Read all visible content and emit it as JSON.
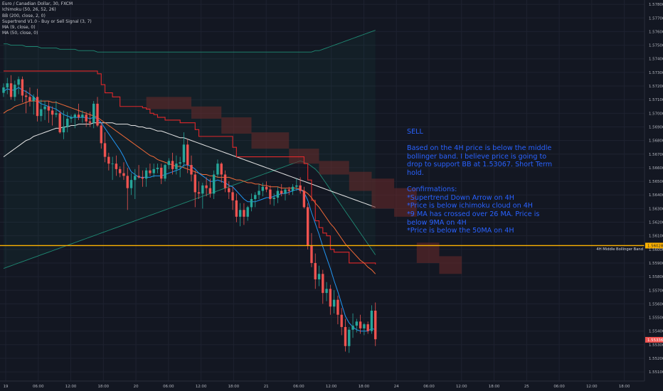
{
  "legend": {
    "symbol": "Euro / Canadian Dollar, 30, FXCM",
    "indicators": [
      "Ichimoku (50, 26, 52, 26)",
      "BB (200, close, 2, 0)",
      "Supertrend V1.0 - Buy or Sell Signal (3, 7)",
      "MA (9, close, 0)",
      "MA (50, close, 0)"
    ]
  },
  "note": {
    "heading": "SELL",
    "body": "Based on the 4H price is below the middle bollinger band. I believe price is going to drop to support BB at 1.53067. Short Term hold.",
    "confirm_title": "Confirmations:",
    "confirmations": [
      "*Supertrend Down Arrow on 4H",
      "*Price is below ichimoku cloud on 4H",
      "*9 MA has crossed over 26 MA. Price is below 9MA on 4H",
      "*Price is below the 50MA on 4H"
    ]
  },
  "colors": {
    "background": "#131722",
    "grid": "#1e2230",
    "candle_up": "#26a69a",
    "candle_down": "#ef5350",
    "supertrend": "#e0282b",
    "cloud": "#6b2a2a",
    "ma9": "#2196f3",
    "ma50": "#f06a38",
    "bb_basis": "#e6e6e6",
    "bb_band": "#1f8a74",
    "hline": "#ffb300",
    "note_text": "#2962ff",
    "price_badge": "#ef5350"
  },
  "chart_data": {
    "type": "candlestick",
    "y_ticks": [
      "1.57800",
      "1.57700",
      "1.57600",
      "1.57500",
      "1.57400",
      "1.57300",
      "1.57200",
      "1.57100",
      "1.57000",
      "1.56900",
      "1.56800",
      "1.56700",
      "1.56600",
      "1.56500",
      "1.56400",
      "1.56300",
      "1.56200",
      "1.56100",
      "1.56000",
      "1.55900",
      "1.55800",
      "1.55700",
      "1.55600",
      "1.55500",
      "1.55400",
      "1.55300",
      "1.55200",
      "1.55100"
    ],
    "ylim": [
      1.55033,
      1.57832
    ],
    "x_ticks": [
      "19",
      "06:00",
      "12:00",
      "18:00",
      "20",
      "06:00",
      "12:00",
      "18:00",
      "21",
      "06:00",
      "12:00",
      "18:00",
      "24",
      "06:00",
      "12:00",
      "18:00",
      "25",
      "06:00",
      "12:00",
      "18:00"
    ],
    "horizontal_line": {
      "value": 1.56028,
      "label": "4H Middle Bollinger Band",
      "badge": "1.56028"
    },
    "current_price": {
      "value": 1.55336,
      "badge": "1.55336"
    },
    "candles": [
      [
        1.5715,
        1.5722,
        1.5712,
        1.5719
      ],
      [
        1.5719,
        1.5726,
        1.5714,
        1.5722
      ],
      [
        1.5722,
        1.5728,
        1.571,
        1.5712
      ],
      [
        1.5712,
        1.5724,
        1.5709,
        1.5721
      ],
      [
        1.5721,
        1.5727,
        1.5714,
        1.5725
      ],
      [
        1.5725,
        1.5727,
        1.5708,
        1.5713
      ],
      [
        1.5713,
        1.5717,
        1.57,
        1.5712
      ],
      [
        1.5712,
        1.5719,
        1.5705,
        1.5709
      ],
      [
        1.5709,
        1.5714,
        1.5699,
        1.5712
      ],
      [
        1.5712,
        1.5718,
        1.5694,
        1.5698
      ],
      [
        1.5698,
        1.571,
        1.5694,
        1.5703
      ],
      [
        1.5703,
        1.5709,
        1.5695,
        1.5705
      ],
      [
        1.5705,
        1.5709,
        1.5693,
        1.5702
      ],
      [
        1.5702,
        1.5705,
        1.5691,
        1.5699
      ],
      [
        1.5699,
        1.5709,
        1.5697,
        1.57
      ],
      [
        1.57,
        1.5702,
        1.5685,
        1.5686
      ],
      [
        1.5686,
        1.5702,
        1.5681,
        1.569
      ],
      [
        1.569,
        1.5701,
        1.5686,
        1.5696
      ],
      [
        1.5696,
        1.5699,
        1.5693,
        1.5697
      ],
      [
        1.5697,
        1.57,
        1.5689,
        1.5699
      ],
      [
        1.5699,
        1.5707,
        1.5695,
        1.5697
      ],
      [
        1.5697,
        1.5702,
        1.5693,
        1.5699
      ],
      [
        1.5699,
        1.5701,
        1.569,
        1.5694
      ],
      [
        1.5694,
        1.5701,
        1.569,
        1.5693
      ],
      [
        1.5693,
        1.5709,
        1.5689,
        1.5707
      ],
      [
        1.5707,
        1.5712,
        1.569,
        1.5691
      ],
      [
        1.5691,
        1.5693,
        1.5674,
        1.5678
      ],
      [
        1.5678,
        1.5686,
        1.5664,
        1.5668
      ],
      [
        1.5668,
        1.5671,
        1.5658,
        1.5663
      ],
      [
        1.5663,
        1.5668,
        1.5651,
        1.5663
      ],
      [
        1.5663,
        1.5669,
        1.5654,
        1.5659
      ],
      [
        1.5659,
        1.5661,
        1.5653,
        1.5656
      ],
      [
        1.5656,
        1.5664,
        1.5651,
        1.5654
      ],
      [
        1.5654,
        1.566,
        1.5629,
        1.5645
      ],
      [
        1.5645,
        1.5656,
        1.564,
        1.5651
      ],
      [
        1.5651,
        1.5659,
        1.5637,
        1.5654
      ],
      [
        1.5654,
        1.5662,
        1.5652,
        1.5653
      ],
      [
        1.5653,
        1.5658,
        1.5646,
        1.5652
      ],
      [
        1.5652,
        1.566,
        1.5646,
        1.5658
      ],
      [
        1.5658,
        1.5663,
        1.5654,
        1.5656
      ],
      [
        1.5656,
        1.5663,
        1.5653,
        1.5659
      ],
      [
        1.5659,
        1.5663,
        1.5656,
        1.566
      ],
      [
        1.566,
        1.5663,
        1.5648,
        1.5652
      ],
      [
        1.5652,
        1.5663,
        1.565,
        1.5662
      ],
      [
        1.5662,
        1.5667,
        1.5659,
        1.5665
      ],
      [
        1.5665,
        1.5671,
        1.5655,
        1.5659
      ],
      [
        1.5659,
        1.5669,
        1.5655,
        1.5663
      ],
      [
        1.5663,
        1.5668,
        1.5653,
        1.5664
      ],
      [
        1.5664,
        1.5686,
        1.566,
        1.5677
      ],
      [
        1.5677,
        1.5681,
        1.5656,
        1.5662
      ],
      [
        1.5662,
        1.5669,
        1.565,
        1.5655
      ],
      [
        1.5655,
        1.5658,
        1.5631,
        1.5642
      ],
      [
        1.5642,
        1.565,
        1.5637,
        1.5641
      ],
      [
        1.5641,
        1.5649,
        1.563,
        1.5647
      ],
      [
        1.5647,
        1.5653,
        1.5639,
        1.5645
      ],
      [
        1.5645,
        1.5652,
        1.5638,
        1.5641
      ],
      [
        1.5641,
        1.5658,
        1.5637,
        1.5655
      ],
      [
        1.5655,
        1.5666,
        1.5653,
        1.5663
      ],
      [
        1.5663,
        1.5664,
        1.5649,
        1.5655
      ],
      [
        1.5655,
        1.5658,
        1.5642,
        1.5645
      ],
      [
        1.5645,
        1.565,
        1.5637,
        1.5642
      ],
      [
        1.5642,
        1.5646,
        1.5629,
        1.5636
      ],
      [
        1.5636,
        1.5641,
        1.562,
        1.5624
      ],
      [
        1.5624,
        1.5634,
        1.5617,
        1.5629
      ],
      [
        1.5629,
        1.5634,
        1.5618,
        1.5624
      ],
      [
        1.5624,
        1.5632,
        1.5621,
        1.5631
      ],
      [
        1.5631,
        1.5641,
        1.5628,
        1.5637
      ],
      [
        1.5637,
        1.5642,
        1.5631,
        1.564
      ],
      [
        1.564,
        1.5648,
        1.5637,
        1.5643
      ],
      [
        1.5643,
        1.5649,
        1.5639,
        1.5646
      ],
      [
        1.5646,
        1.565,
        1.5642,
        1.5644
      ],
      [
        1.5644,
        1.5647,
        1.5633,
        1.5637
      ],
      [
        1.5637,
        1.5641,
        1.5632,
        1.5638
      ],
      [
        1.5638,
        1.5646,
        1.5634,
        1.5643
      ],
      [
        1.5643,
        1.5648,
        1.5639,
        1.5641
      ],
      [
        1.5641,
        1.5645,
        1.5636,
        1.5644
      ],
      [
        1.5644,
        1.5646,
        1.564,
        1.5643
      ],
      [
        1.5643,
        1.5648,
        1.564,
        1.5646
      ],
      [
        1.5646,
        1.5652,
        1.5643,
        1.5647
      ],
      [
        1.5647,
        1.5653,
        1.5641,
        1.5643
      ],
      [
        1.5643,
        1.5646,
        1.563,
        1.5631
      ],
      [
        1.5631,
        1.5634,
        1.56,
        1.5603
      ],
      [
        1.5603,
        1.5612,
        1.5587,
        1.559
      ],
      [
        1.559,
        1.5597,
        1.5571,
        1.5578
      ],
      [
        1.5578,
        1.5588,
        1.5573,
        1.5582
      ],
      [
        1.5582,
        1.5585,
        1.556,
        1.5568
      ],
      [
        1.5568,
        1.5576,
        1.5562,
        1.5571
      ],
      [
        1.5571,
        1.5574,
        1.5552,
        1.5558
      ],
      [
        1.5558,
        1.557,
        1.5553,
        1.5563
      ],
      [
        1.5563,
        1.5566,
        1.5545,
        1.5552
      ],
      [
        1.5552,
        1.5557,
        1.5537,
        1.5543
      ],
      [
        1.5543,
        1.5549,
        1.5525,
        1.5529
      ],
      [
        1.5529,
        1.5543,
        1.5524,
        1.5541
      ],
      [
        1.5541,
        1.5553,
        1.5535,
        1.5544
      ],
      [
        1.5544,
        1.5549,
        1.5539,
        1.5547
      ],
      [
        1.5547,
        1.5552,
        1.5538,
        1.5542
      ],
      [
        1.5542,
        1.5546,
        1.5537,
        1.5545
      ],
      [
        1.5545,
        1.5547,
        1.5538,
        1.554
      ],
      [
        1.554,
        1.5559,
        1.5538,
        1.5555
      ],
      [
        1.5555,
        1.5561,
        1.5529,
        1.5534
      ]
    ],
    "ma9": [
      1.5716,
      1.5718,
      1.5717,
      1.5717,
      1.5719,
      1.5717,
      1.5716,
      1.5714,
      1.5712,
      1.5709,
      1.5707,
      1.5706,
      1.5705,
      1.5704,
      1.5703,
      1.5701,
      1.5699,
      1.5698,
      1.5697,
      1.5697,
      1.5697,
      1.5697,
      1.5697,
      1.5696,
      1.5697,
      1.5696,
      1.5693,
      1.5689,
      1.5685,
      1.5681,
      1.5677,
      1.5673,
      1.5668,
      1.5662,
      1.5657,
      1.5655,
      1.5653,
      1.5653,
      1.5653,
      1.5653,
      1.5654,
      1.5654,
      1.5654,
      1.5655,
      1.5656,
      1.5657,
      1.5658,
      1.5659,
      1.5662,
      1.5662,
      1.5661,
      1.5659,
      1.5656,
      1.5654,
      1.5652,
      1.565,
      1.565,
      1.5651,
      1.565,
      1.5649,
      1.5647,
      1.5646,
      1.5643,
      1.564,
      1.5637,
      1.5635,
      1.5635,
      1.5635,
      1.5636,
      1.5637,
      1.5638,
      1.5638,
      1.5639,
      1.564,
      1.5641,
      1.5641,
      1.5642,
      1.5643,
      1.5644,
      1.5644,
      1.5642,
      1.5636,
      1.5627,
      1.5619,
      1.5611,
      1.5602,
      1.5594,
      1.5586,
      1.5577,
      1.5569,
      1.556,
      1.5551,
      1.5546,
      1.5543,
      1.5541,
      1.554,
      1.554,
      1.554,
      1.5542,
      1.5541
    ],
    "ma50": [
      1.57,
      1.5702,
      1.5703,
      1.5705,
      1.5706,
      1.5707,
      1.5708,
      1.5709,
      1.5709,
      1.5709,
      1.5709,
      1.5709,
      1.5709,
      1.5708,
      1.5708,
      1.5707,
      1.5706,
      1.5705,
      1.5704,
      1.5703,
      1.5702,
      1.5701,
      1.57,
      1.5699,
      1.5698,
      1.5697,
      1.5695,
      1.5693,
      1.5691,
      1.5689,
      1.5687,
      1.5685,
      1.5683,
      1.5681,
      1.5679,
      1.5677,
      1.5675,
      1.5673,
      1.5671,
      1.5669,
      1.5668,
      1.5666,
      1.5665,
      1.5664,
      1.5663,
      1.5662,
      1.5661,
      1.5661,
      1.566,
      1.5659,
      1.5658,
      1.5657,
      1.5656,
      1.5655,
      1.5655,
      1.5654,
      1.5654,
      1.5653,
      1.5653,
      1.5653,
      1.5653,
      1.5652,
      1.5651,
      1.5651,
      1.565,
      1.5649,
      1.5649,
      1.5648,
      1.5648,
      1.5647,
      1.5647,
      1.5646,
      1.5646,
      1.5646,
      1.5645,
      1.5645,
      1.5645,
      1.5645,
      1.5645,
      1.5644,
      1.5643,
      1.5641,
      1.5638,
      1.5634,
      1.5631,
      1.5627,
      1.5623,
      1.5619,
      1.5616,
      1.5612,
      1.5608,
      1.5604,
      1.5601,
      1.5598,
      1.5595,
      1.5592,
      1.559,
      1.5587,
      1.5585,
      1.5582
    ],
    "bb_basis": [
      1.5668,
      1.567,
      1.5672,
      1.5674,
      1.5676,
      1.5678,
      1.568,
      1.5681,
      1.5683,
      1.5684,
      1.5685,
      1.5686,
      1.5687,
      1.5688,
      1.5689,
      1.5689,
      1.569,
      1.569,
      1.5691,
      1.5691,
      1.5692,
      1.5692,
      1.5692,
      1.5692,
      1.5693,
      1.5693,
      1.5693,
      1.5693,
      1.5693,
      1.5693,
      1.5692,
      1.5692,
      1.5692,
      1.5692,
      1.5691,
      1.5691,
      1.569,
      1.569,
      1.5689,
      1.5689,
      1.5688,
      1.5687,
      1.5687,
      1.5686,
      1.5685,
      1.5684,
      1.5683,
      1.5682,
      1.5682,
      1.5681,
      1.568,
      1.5679,
      1.5678,
      1.5677,
      1.5676,
      1.5675,
      1.5674,
      1.5673,
      1.5672,
      1.5671,
      1.567,
      1.5669,
      1.5668,
      1.5667,
      1.5666,
      1.5665,
      1.5664,
      1.5663,
      1.5662,
      1.5661,
      1.566,
      1.5659,
      1.5658,
      1.5657,
      1.5656,
      1.5655,
      1.5654,
      1.5653,
      1.5652,
      1.5651,
      1.565,
      1.5649,
      1.5648,
      1.5647,
      1.5646,
      1.5645,
      1.5644,
      1.5643,
      1.5642,
      1.5641,
      1.564,
      1.5639,
      1.5638,
      1.5637,
      1.5636,
      1.5635,
      1.5634,
      1.5633,
      1.5632,
      1.5631
    ],
    "bb_upper": [
      1.5751,
      1.5751,
      1.575,
      1.575,
      1.575,
      1.575,
      1.5749,
      1.5749,
      1.5749,
      1.5749,
      1.5748,
      1.5748,
      1.5748,
      1.5748,
      1.5748,
      1.5747,
      1.5747,
      1.5747,
      1.5747,
      1.5747,
      1.5746,
      1.5746,
      1.5746,
      1.5746,
      1.5746,
      1.5745,
      1.5745,
      1.5745,
      1.5745,
      1.5745,
      1.5745,
      1.5745,
      1.5745,
      1.5745,
      1.5745,
      1.5745,
      1.5745,
      1.5745,
      1.5745,
      1.5745,
      1.5745,
      1.5745,
      1.5745,
      1.5745,
      1.5745,
      1.5745,
      1.5745,
      1.5745,
      1.5745,
      1.5745,
      1.5745,
      1.5745,
      1.5745,
      1.5745,
      1.5745,
      1.5745,
      1.5745,
      1.5745,
      1.5745,
      1.5745,
      1.5745,
      1.5745,
      1.5745,
      1.5745,
      1.5745,
      1.5745,
      1.5745,
      1.5745,
      1.5745,
      1.5745,
      1.5745,
      1.5745,
      1.5745,
      1.5745,
      1.5745,
      1.5745,
      1.5745,
      1.5745,
      1.5745,
      1.5745,
      1.5745,
      1.5745,
      1.5745,
      1.5746,
      1.5746,
      1.5747,
      1.5748,
      1.5749,
      1.575,
      1.5751,
      1.5752,
      1.5753,
      1.5754,
      1.5755,
      1.5756,
      1.5757,
      1.5758,
      1.5759,
      1.576,
      1.5761
    ],
    "bb_lower": [
      1.5586,
      1.5587,
      1.5588,
      1.5589,
      1.559,
      1.5591,
      1.5592,
      1.5593,
      1.5594,
      1.5595,
      1.5596,
      1.5597,
      1.5598,
      1.5599,
      1.56,
      1.5601,
      1.5602,
      1.5603,
      1.5604,
      1.5605,
      1.5606,
      1.5607,
      1.5608,
      1.5609,
      1.561,
      1.5611,
      1.5612,
      1.5613,
      1.5614,
      1.5615,
      1.5616,
      1.5617,
      1.5618,
      1.5619,
      1.562,
      1.5621,
      1.5622,
      1.5623,
      1.5624,
      1.5625,
      1.5626,
      1.5627,
      1.5628,
      1.5629,
      1.563,
      1.5631,
      1.5632,
      1.5633,
      1.5634,
      1.5635,
      1.5636,
      1.5637,
      1.5638,
      1.5639,
      1.564,
      1.5641,
      1.5642,
      1.5643,
      1.5644,
      1.5645,
      1.5646,
      1.5647,
      1.5648,
      1.5649,
      1.565,
      1.5651,
      1.5652,
      1.5653,
      1.5654,
      1.5655,
      1.5656,
      1.5657,
      1.5658,
      1.5659,
      1.566,
      1.5661,
      1.5662,
      1.5663,
      1.5664,
      1.5665,
      1.5664,
      1.5663,
      1.5661,
      1.5659,
      1.5656,
      1.5652,
      1.5648,
      1.5644,
      1.564,
      1.5636,
      1.5632,
      1.5628,
      1.5624,
      1.562,
      1.5616,
      1.5612,
      1.5608,
      1.5604,
      1.56,
      1.5596
    ],
    "supertrend": [
      1.5731,
      1.5731,
      1.5731,
      1.5731,
      1.5731,
      1.5731,
      1.5731,
      1.5731,
      1.5731,
      1.5731,
      1.5731,
      1.5731,
      1.5731,
      1.5731,
      1.5731,
      1.5731,
      1.5731,
      1.5731,
      1.5731,
      1.5731,
      1.5731,
      1.5731,
      1.5731,
      1.5731,
      1.5731,
      1.5729,
      1.5721,
      1.5715,
      1.5715,
      1.5712,
      1.5712,
      1.5705,
      1.5705,
      1.5705,
      1.5705,
      1.5705,
      1.5705,
      1.5704,
      1.5703,
      1.57,
      1.5699,
      1.5697,
      1.5697,
      1.5695,
      1.5695,
      1.5695,
      1.5695,
      1.5693,
      1.5693,
      1.5693,
      1.5693,
      1.5688,
      1.5683,
      1.5683,
      1.5683,
      1.5683,
      1.5683,
      1.5683,
      1.5683,
      1.5683,
      1.5683,
      1.5675,
      1.5668,
      1.5668,
      1.5668,
      1.5668,
      1.5668,
      1.5668,
      1.5668,
      1.5668,
      1.5668,
      1.5668,
      1.5668,
      1.5668,
      1.5668,
      1.5668,
      1.5668,
      1.5668,
      1.5668,
      1.5668,
      1.5663,
      1.5651,
      1.5636,
      1.5621,
      1.5616,
      1.5612,
      1.561,
      1.56,
      1.5598,
      1.5598,
      1.5598,
      1.5598,
      1.559,
      1.559,
      1.559,
      1.559,
      1.559,
      1.559,
      1.559,
      1.5589
    ],
    "cloud": [
      {
        "x_start": 38,
        "x_end": 50,
        "top": 1.5712,
        "bottom": 1.5703
      },
      {
        "x_start": 50,
        "x_end": 58,
        "top": 1.5705,
        "bottom": 1.5696
      },
      {
        "x_start": 58,
        "x_end": 66,
        "top": 1.5697,
        "bottom": 1.5685
      },
      {
        "x_start": 66,
        "x_end": 76,
        "top": 1.5686,
        "bottom": 1.5674
      },
      {
        "x_start": 76,
        "x_end": 84,
        "top": 1.5674,
        "bottom": 1.5663
      },
      {
        "x_start": 84,
        "x_end": 92,
        "top": 1.5665,
        "bottom": 1.5655
      },
      {
        "x_start": 92,
        "x_end": 98,
        "top": 1.5657,
        "bottom": 1.5643
      },
      {
        "x_start": 98,
        "x_end": 104,
        "top": 1.5652,
        "bottom": 1.563
      },
      {
        "x_start": 104,
        "x_end": 110,
        "top": 1.5645,
        "bottom": 1.5624
      },
      {
        "x_start": 110,
        "x_end": 116,
        "top": 1.5605,
        "bottom": 1.559
      },
      {
        "x_start": 116,
        "x_end": 122,
        "top": 1.5595,
        "bottom": 1.5582
      }
    ]
  }
}
